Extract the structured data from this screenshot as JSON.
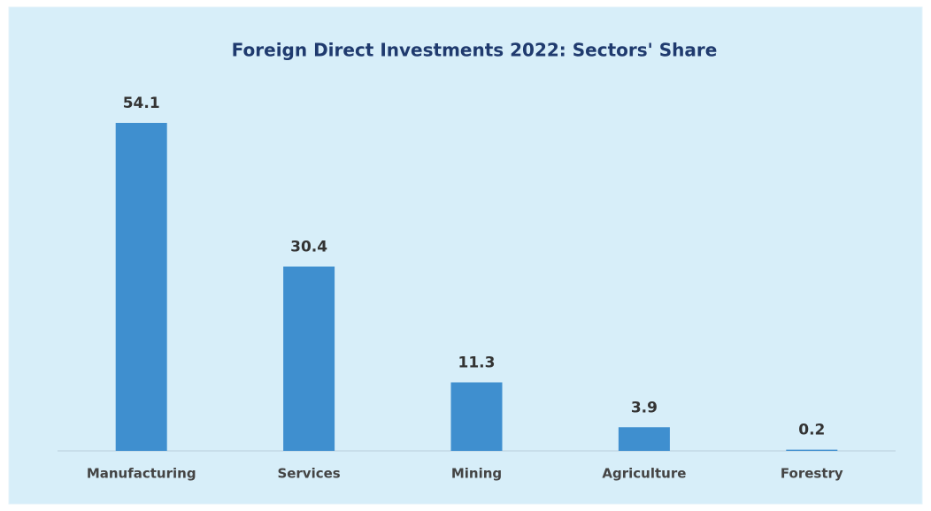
{
  "chart_data": {
    "type": "bar",
    "title": "Foreign Direct Investments 2022: Sectors' Share",
    "categories": [
      "Manufacturing",
      "Services",
      "Mining",
      "Agriculture",
      "Forestry"
    ],
    "values": [
      54.1,
      30.4,
      11.3,
      3.9,
      0.2
    ],
    "color": "#3f8fcf"
  }
}
